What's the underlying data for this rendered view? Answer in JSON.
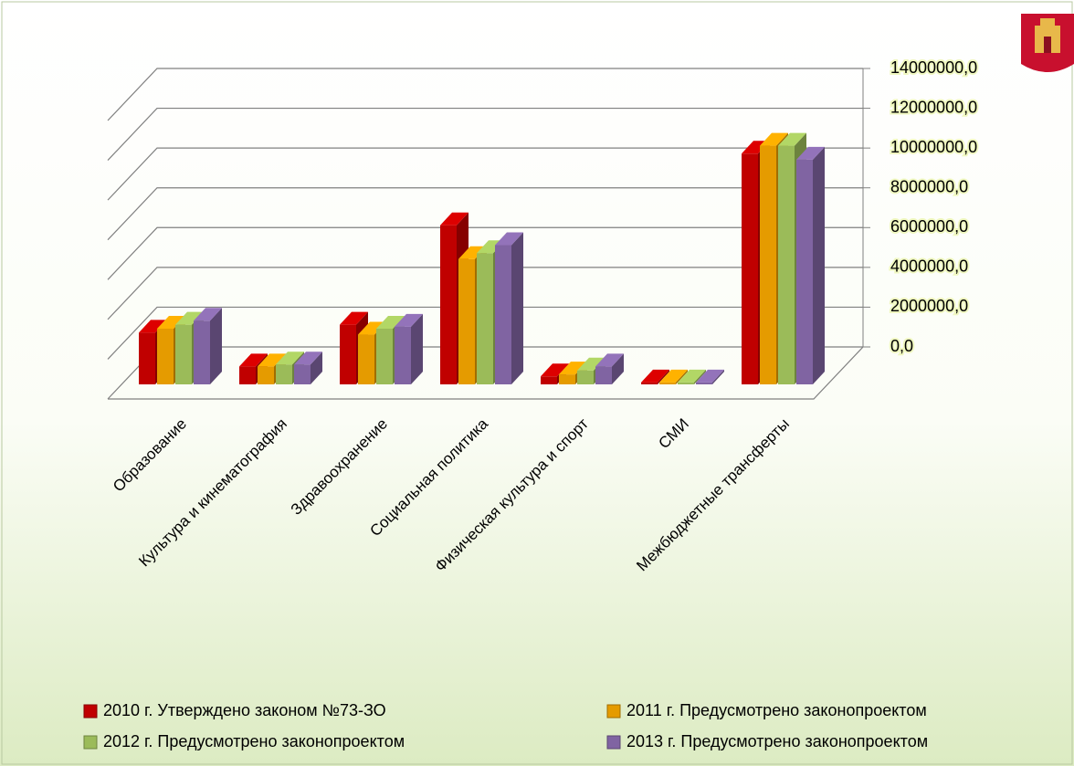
{
  "chart_data": {
    "type": "bar",
    "categories": [
      "Образование",
      "Культура и кинематография",
      "Здравоохранение",
      "Социальная политика",
      "Физическая культура и спорт",
      "СМИ",
      "Межбюджетные трансферты"
    ],
    "series": [
      {
        "name": "2010 г. Утверждено законом №73-ЗО",
        "color": "#c00000",
        "values": [
          2600000,
          900000,
          3000000,
          8000000,
          400000,
          100000,
          11600000
        ]
      },
      {
        "name": "2011 г. Предусмотрено законопроектом",
        "color": "#e59b00",
        "values": [
          2800000,
          900000,
          2500000,
          6300000,
          500000,
          100000,
          12000000
        ]
      },
      {
        "name": "2012 г. Предусмотрено законопроектом",
        "color": "#9bbb59",
        "values": [
          3000000,
          1000000,
          2800000,
          6600000,
          700000,
          100000,
          12000000
        ]
      },
      {
        "name": "2013 г. Предусмотрено законопроектом",
        "color": "#8064a2",
        "values": [
          3200000,
          1000000,
          2900000,
          7000000,
          900000,
          100000,
          11300000
        ]
      }
    ],
    "ylim": [
      0,
      14000000
    ],
    "yticks": [
      {
        "value": 0,
        "label": "0,0"
      },
      {
        "value": 2000000,
        "label": "2000000,0"
      },
      {
        "value": 4000000,
        "label": "4000000,0"
      },
      {
        "value": 6000000,
        "label": "6000000,0"
      },
      {
        "value": 8000000,
        "label": "8000000,0"
      },
      {
        "value": 10000000,
        "label": "10000000,0"
      },
      {
        "value": 12000000,
        "label": "12000000,0"
      },
      {
        "value": 14000000,
        "label": "14000000,0"
      }
    ],
    "grid": true
  }
}
